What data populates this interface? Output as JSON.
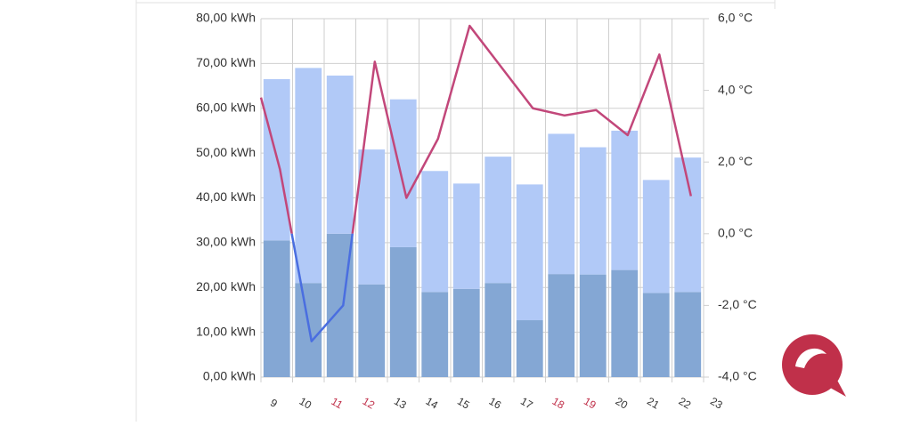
{
  "chart_data": {
    "type": "bar_line",
    "xlim": [
      9,
      23
    ],
    "xticks": [
      9,
      10,
      11,
      12,
      13,
      14,
      15,
      16,
      17,
      18,
      19,
      20,
      21,
      22,
      23
    ],
    "xtick_colors": [
      "#333333",
      "#333333",
      "#c0304a",
      "#c0304a",
      "#333333",
      "#333333",
      "#333333",
      "#333333",
      "#333333",
      "#c0304a",
      "#c0304a",
      "#333333",
      "#333333",
      "#333333",
      "#333333"
    ],
    "ylim": [
      0,
      80
    ],
    "yticks": [
      {
        "value": 0,
        "label": "0,00 kWh"
      },
      {
        "value": 10,
        "label": "10,00 kWh"
      },
      {
        "value": 20,
        "label": "20,00 kWh"
      },
      {
        "value": 30,
        "label": "30,00 kWh"
      },
      {
        "value": 40,
        "label": "40,00 kWh"
      },
      {
        "value": 50,
        "label": "50,00 kWh"
      },
      {
        "value": 60,
        "label": "60,00 kWh"
      },
      {
        "value": 70,
        "label": "70,00 kWh"
      },
      {
        "value": 80,
        "label": "80,00 kWh"
      }
    ],
    "y2lim": [
      -4,
      6
    ],
    "y2ticks": [
      {
        "value": -4,
        "label": "-4,0 °C"
      },
      {
        "value": -2,
        "label": "-2,0 °C"
      },
      {
        "value": 0,
        "label": "0,0 °C"
      },
      {
        "value": 2,
        "label": "2,0 °C"
      },
      {
        "value": 4,
        "label": "4,0 °C"
      },
      {
        "value": 6,
        "label": "6,0 °C"
      }
    ],
    "grid": true,
    "bar_x": [
      9.5,
      10.5,
      11.5,
      12.5,
      13.5,
      14.5,
      15.5,
      16.5,
      17.5,
      18.5,
      19.5,
      20.5,
      21.5,
      22.5
    ],
    "series": [
      {
        "type": "bar",
        "color": "#84a7d4",
        "values": [
          30.5,
          21,
          32,
          20.7,
          29,
          19,
          19.7,
          21,
          12.7,
          23,
          22.9,
          23.9,
          18.8,
          19
        ]
      },
      {
        "type": "bar",
        "color": "#b1c9f7",
        "values": [
          36,
          48,
          35.3,
          30.1,
          33,
          27,
          23.5,
          28.2,
          30.3,
          31.3,
          28.4,
          31.1,
          25.2,
          30
        ]
      },
      {
        "type": "line",
        "axis": "y2",
        "color": "#c2477a",
        "negative_color": "#4a6ee0",
        "x": [
          9,
          9.6,
          10.6,
          11.6,
          12.6,
          13.6,
          14.6,
          15.6,
          16.6,
          17.6,
          18.6,
          19.6,
          20.6,
          21.6,
          22.6
        ],
        "values": [
          3.8,
          1.8,
          -3.0,
          -2.0,
          4.8,
          1.0,
          2.65,
          5.8,
          4.65,
          3.5,
          3.3,
          3.45,
          2.75,
          5.0,
          1.05
        ]
      }
    ]
  }
}
